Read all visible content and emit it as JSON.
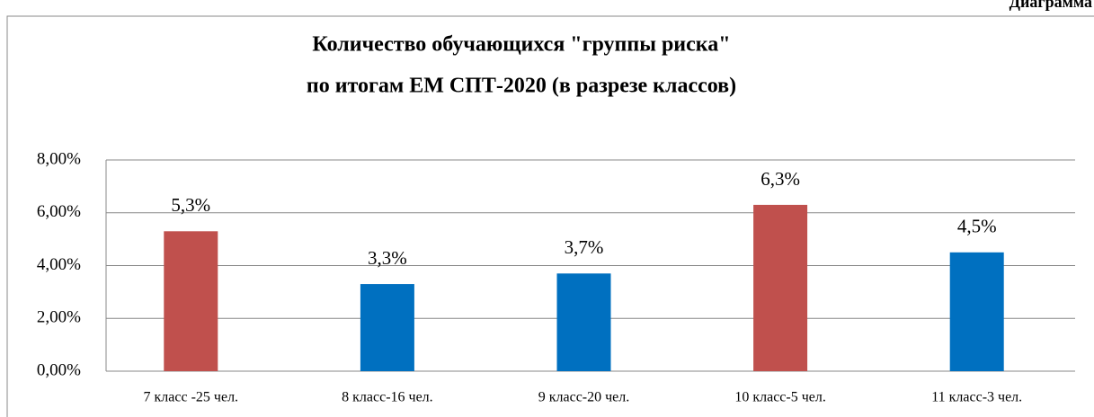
{
  "header": {
    "text": "Диаграмма"
  },
  "chart_data": {
    "type": "bar",
    "title": [
      "Количество обучающихся \"группы риска\"",
      "по итогам ЕМ СПТ-2020 (в разрезе классов)"
    ],
    "categories": [
      "7 класс -25 чел.",
      "8 класс-16 чел.",
      "9 класс-20 чел.",
      "10 класс-5 чел.",
      "11 класс-3 чел."
    ],
    "values": [
      5.3,
      3.3,
      3.7,
      6.3,
      4.5
    ],
    "value_labels": [
      "5,3%",
      "3,3%",
      "3,7%",
      "6,3%",
      "4,5%"
    ],
    "colors": [
      "#c0504d",
      "#0070c0",
      "#0070c0",
      "#c0504d",
      "#0070c0"
    ],
    "ylim": [
      0,
      8
    ],
    "yticks": [
      {
        "value": 0,
        "label": "0,00%"
      },
      {
        "value": 2,
        "label": "2,00%"
      },
      {
        "value": 4,
        "label": "4,00%"
      },
      {
        "value": 6,
        "label": "6,00%"
      },
      {
        "value": 8,
        "label": "8,00%"
      }
    ],
    "grid": true
  }
}
